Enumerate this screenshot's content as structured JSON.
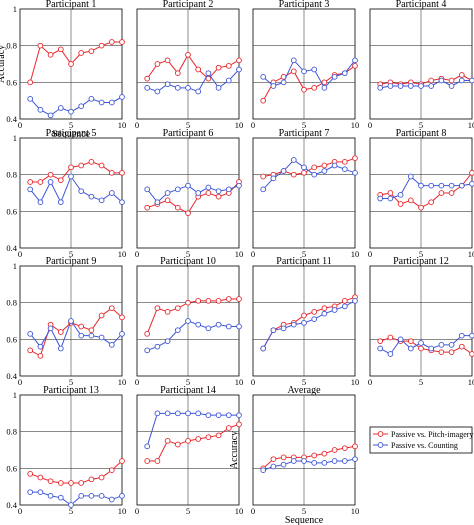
{
  "figure": {
    "ylabel": "Accuracy",
    "xlabel": "Sequence",
    "colors": {
      "pitch": "#e8262b",
      "counting": "#3d55d6"
    },
    "legend": [
      {
        "key": "pitch",
        "label": "Passive vs. Pitch-imagery"
      },
      {
        "key": "counting",
        "label": "Passive vs. Counting"
      }
    ]
  },
  "chart_data": [
    {
      "type": "line",
      "title": "Participant 1",
      "x": [
        1,
        2,
        3,
        4,
        5,
        6,
        7,
        8,
        9,
        10
      ],
      "xlim": [
        0,
        10
      ],
      "ylim": [
        0.4,
        1
      ],
      "series": [
        {
          "key": "pitch",
          "values": [
            0.6,
            0.8,
            0.75,
            0.78,
            0.7,
            0.76,
            0.77,
            0.8,
            0.82,
            0.82
          ]
        },
        {
          "key": "counting",
          "values": [
            0.51,
            0.45,
            0.42,
            0.46,
            0.44,
            0.47,
            0.51,
            0.49,
            0.49,
            0.52
          ]
        }
      ]
    },
    {
      "type": "line",
      "title": "Participant 2",
      "x": [
        1,
        2,
        3,
        4,
        5,
        6,
        7,
        8,
        9,
        10
      ],
      "xlim": [
        0,
        10
      ],
      "ylim": [
        0.4,
        1
      ],
      "series": [
        {
          "key": "pitch",
          "values": [
            0.62,
            0.7,
            0.72,
            0.65,
            0.75,
            0.67,
            0.62,
            0.68,
            0.69,
            0.72
          ]
        },
        {
          "key": "counting",
          "values": [
            0.57,
            0.55,
            0.59,
            0.57,
            0.57,
            0.55,
            0.65,
            0.57,
            0.61,
            0.67
          ]
        }
      ]
    },
    {
      "type": "line",
      "title": "Participant 3",
      "x": [
        1,
        2,
        3,
        4,
        5,
        6,
        7,
        8,
        9,
        10
      ],
      "xlim": [
        0,
        10
      ],
      "ylim": [
        0.4,
        1
      ],
      "series": [
        {
          "key": "pitch",
          "values": [
            0.5,
            0.6,
            0.63,
            0.66,
            0.56,
            0.57,
            0.6,
            0.64,
            0.65,
            0.69
          ]
        },
        {
          "key": "counting",
          "values": [
            0.63,
            0.58,
            0.6,
            0.72,
            0.66,
            0.67,
            0.57,
            0.63,
            0.65,
            0.72
          ]
        }
      ]
    },
    {
      "type": "line",
      "title": "Participant 4",
      "x": [
        1,
        2,
        3,
        4,
        5,
        6,
        7,
        8,
        9,
        10
      ],
      "xlim": [
        0,
        10
      ],
      "ylim": [
        0.4,
        1
      ],
      "series": [
        {
          "key": "pitch",
          "values": [
            0.59,
            0.6,
            0.59,
            0.6,
            0.59,
            0.61,
            0.62,
            0.61,
            0.64,
            0.61
          ]
        },
        {
          "key": "counting",
          "values": [
            0.57,
            0.58,
            0.58,
            0.58,
            0.58,
            0.58,
            0.61,
            0.58,
            0.61,
            0.61
          ]
        }
      ]
    },
    {
      "type": "line",
      "title": "Participant 5",
      "x": [
        1,
        2,
        3,
        4,
        5,
        6,
        7,
        8,
        9,
        10
      ],
      "xlim": [
        0,
        10
      ],
      "ylim": [
        0.4,
        1
      ],
      "series": [
        {
          "key": "pitch",
          "values": [
            0.76,
            0.76,
            0.8,
            0.77,
            0.84,
            0.85,
            0.87,
            0.85,
            0.81,
            0.81
          ]
        },
        {
          "key": "counting",
          "values": [
            0.72,
            0.65,
            0.76,
            0.65,
            0.79,
            0.71,
            0.68,
            0.66,
            0.7,
            0.65
          ]
        }
      ]
    },
    {
      "type": "line",
      "title": "Participant 6",
      "x": [
        1,
        2,
        3,
        4,
        5,
        6,
        7,
        8,
        9,
        10
      ],
      "xlim": [
        0,
        10
      ],
      "ylim": [
        0.4,
        1
      ],
      "series": [
        {
          "key": "pitch",
          "values": [
            0.62,
            0.64,
            0.66,
            0.62,
            0.59,
            0.68,
            0.7,
            0.68,
            0.7,
            0.76
          ]
        },
        {
          "key": "counting",
          "values": [
            0.72,
            0.65,
            0.7,
            0.72,
            0.74,
            0.7,
            0.73,
            0.71,
            0.72,
            0.74
          ]
        }
      ]
    },
    {
      "type": "line",
      "title": "Participant 7",
      "x": [
        1,
        2,
        3,
        4,
        5,
        6,
        7,
        8,
        9,
        10
      ],
      "xlim": [
        0,
        10
      ],
      "ylim": [
        0.4,
        1
      ],
      "series": [
        {
          "key": "pitch",
          "values": [
            0.79,
            0.8,
            0.82,
            0.8,
            0.81,
            0.84,
            0.85,
            0.87,
            0.87,
            0.89
          ]
        },
        {
          "key": "counting",
          "values": [
            0.72,
            0.78,
            0.82,
            0.88,
            0.84,
            0.8,
            0.82,
            0.85,
            0.83,
            0.81
          ]
        }
      ]
    },
    {
      "type": "line",
      "title": "Participant 8",
      "x": [
        1,
        2,
        3,
        4,
        5,
        6,
        7,
        8,
        9,
        10
      ],
      "xlim": [
        0,
        10
      ],
      "ylim": [
        0.4,
        1
      ],
      "series": [
        {
          "key": "pitch",
          "values": [
            0.69,
            0.7,
            0.64,
            0.66,
            0.62,
            0.65,
            0.7,
            0.7,
            0.74,
            0.81
          ]
        },
        {
          "key": "counting",
          "values": [
            0.67,
            0.67,
            0.69,
            0.79,
            0.74,
            0.74,
            0.74,
            0.74,
            0.74,
            0.75
          ]
        }
      ]
    },
    {
      "type": "line",
      "title": "Participant 9",
      "x": [
        1,
        2,
        3,
        4,
        5,
        6,
        7,
        8,
        9,
        10
      ],
      "xlim": [
        0,
        10
      ],
      "ylim": [
        0.4,
        1
      ],
      "series": [
        {
          "key": "pitch",
          "values": [
            0.54,
            0.51,
            0.68,
            0.64,
            0.69,
            0.67,
            0.65,
            0.73,
            0.77,
            0.72
          ]
        },
        {
          "key": "counting",
          "values": [
            0.63,
            0.56,
            0.66,
            0.55,
            0.7,
            0.62,
            0.62,
            0.61,
            0.57,
            0.63
          ]
        }
      ]
    },
    {
      "type": "line",
      "title": "Participant 10",
      "x": [
        1,
        2,
        3,
        4,
        5,
        6,
        7,
        8,
        9,
        10
      ],
      "xlim": [
        0,
        10
      ],
      "ylim": [
        0.4,
        1
      ],
      "series": [
        {
          "key": "pitch",
          "values": [
            0.63,
            0.77,
            0.75,
            0.77,
            0.8,
            0.81,
            0.81,
            0.81,
            0.82,
            0.82
          ]
        },
        {
          "key": "counting",
          "values": [
            0.54,
            0.56,
            0.59,
            0.65,
            0.7,
            0.68,
            0.66,
            0.68,
            0.67,
            0.67
          ]
        }
      ]
    },
    {
      "type": "line",
      "title": "Participant 11",
      "x": [
        1,
        2,
        3,
        4,
        5,
        6,
        7,
        8,
        9,
        10
      ],
      "xlim": [
        0,
        10
      ],
      "ylim": [
        0.4,
        1
      ],
      "series": [
        {
          "key": "pitch",
          "values": [
            0.55,
            0.65,
            0.68,
            0.69,
            0.73,
            0.75,
            0.77,
            0.78,
            0.81,
            0.83
          ]
        },
        {
          "key": "counting",
          "values": [
            0.55,
            0.65,
            0.66,
            0.68,
            0.69,
            0.71,
            0.74,
            0.76,
            0.78,
            0.81
          ]
        }
      ]
    },
    {
      "type": "line",
      "title": "Participant 12",
      "x": [
        1,
        2,
        3,
        4,
        5,
        6,
        7,
        8,
        9,
        10
      ],
      "xlim": [
        0,
        10
      ],
      "ylim": [
        0.4,
        1
      ],
      "series": [
        {
          "key": "pitch",
          "values": [
            0.59,
            0.61,
            0.59,
            0.59,
            0.55,
            0.54,
            0.53,
            0.53,
            0.56,
            0.52
          ]
        },
        {
          "key": "counting",
          "values": [
            0.55,
            0.52,
            0.6,
            0.55,
            0.58,
            0.55,
            0.57,
            0.57,
            0.62,
            0.62
          ]
        }
      ]
    },
    {
      "type": "line",
      "title": "Participant 13",
      "x": [
        1,
        2,
        3,
        4,
        5,
        6,
        7,
        8,
        9,
        10
      ],
      "xlim": [
        0,
        10
      ],
      "ylim": [
        0.4,
        1
      ],
      "series": [
        {
          "key": "pitch",
          "values": [
            0.57,
            0.55,
            0.53,
            0.52,
            0.52,
            0.52,
            0.54,
            0.55,
            0.59,
            0.64
          ]
        },
        {
          "key": "counting",
          "values": [
            0.47,
            0.47,
            0.45,
            0.44,
            0.4,
            0.45,
            0.45,
            0.45,
            0.43,
            0.45
          ]
        }
      ]
    },
    {
      "type": "line",
      "title": "Participant 14",
      "x": [
        1,
        2,
        3,
        4,
        5,
        6,
        7,
        8,
        9,
        10
      ],
      "xlim": [
        0,
        10
      ],
      "ylim": [
        0.4,
        1
      ],
      "series": [
        {
          "key": "pitch",
          "values": [
            0.64,
            0.64,
            0.75,
            0.73,
            0.75,
            0.76,
            0.77,
            0.78,
            0.82,
            0.84
          ]
        },
        {
          "key": "counting",
          "values": [
            0.72,
            0.9,
            0.9,
            0.9,
            0.9,
            0.9,
            0.89,
            0.89,
            0.89,
            0.89
          ]
        }
      ]
    },
    {
      "type": "line",
      "title": "Average",
      "x": [
        1,
        2,
        3,
        4,
        5,
        6,
        7,
        8,
        9,
        10
      ],
      "xlim": [
        0,
        10
      ],
      "ylim": [
        0.4,
        1
      ],
      "series": [
        {
          "key": "pitch",
          "values": [
            0.6,
            0.65,
            0.66,
            0.66,
            0.66,
            0.67,
            0.68,
            0.7,
            0.71,
            0.72
          ]
        },
        {
          "key": "counting",
          "values": [
            0.59,
            0.61,
            0.62,
            0.64,
            0.64,
            0.63,
            0.63,
            0.64,
            0.64,
            0.65
          ]
        }
      ]
    }
  ]
}
